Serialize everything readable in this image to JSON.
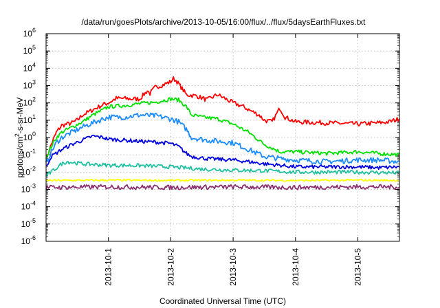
{
  "chart_data": {
    "type": "line",
    "title": "/data/run/goesPlots/archive/2013-10-05/16:00/flux/../flux/5daysEarthFluxes.txt",
    "xlabel": "Coordinated Universal Time (UTC)",
    "ylabel_parts": [
      "protons/cm",
      "2",
      "-s-sr-MeV"
    ],
    "y_scale": "log",
    "ylim_exp": [
      -6,
      6
    ],
    "y_ticks": [
      {
        "exp": -6,
        "label": "-6"
      },
      {
        "exp": -5,
        "label": "-5"
      },
      {
        "exp": -4,
        "label": "-4"
      },
      {
        "exp": -3,
        "label": "-3"
      },
      {
        "exp": -2,
        "label": "-2"
      },
      {
        "exp": -1,
        "label": "-1"
      },
      {
        "exp": 0,
        "label": "0"
      },
      {
        "exp": 1,
        "label": "1"
      },
      {
        "exp": 2,
        "label": "2"
      },
      {
        "exp": 3,
        "label": "3"
      },
      {
        "exp": 4,
        "label": "4"
      },
      {
        "exp": 5,
        "label": "5"
      },
      {
        "exp": 6,
        "label": "6"
      }
    ],
    "y_tick_base": "10",
    "xlim": [
      "2013-09-30T00:00",
      "2013-10-05T16:00"
    ],
    "x_ticks": [
      {
        "t": "2013-10-01T00:00",
        "label": "2013-10-1"
      },
      {
        "t": "2013-10-02T00:00",
        "label": "2013-10-2"
      },
      {
        "t": "2013-10-03T00:00",
        "label": "2013-10-3"
      },
      {
        "t": "2013-10-04T00:00",
        "label": "2013-10-4"
      },
      {
        "t": "2013-10-05T00:00",
        "label": "2013-10-5"
      }
    ],
    "grid": true,
    "legend": "none",
    "series": [
      {
        "color": "#ff0000",
        "noise": 0.06,
        "x": [
          "2013-09-30T00:00",
          "2013-09-30T02:00",
          "2013-09-30T04:00",
          "2013-09-30T06:00",
          "2013-09-30T10:00",
          "2013-09-30T12:00",
          "2013-09-30T14:00",
          "2013-09-30T18:00",
          "2013-09-30T22:00",
          "2013-10-01T00:00",
          "2013-10-01T03:00",
          "2013-10-01T06:00",
          "2013-10-01T09:00",
          "2013-10-01T12:00",
          "2013-10-01T15:00",
          "2013-10-01T16:00",
          "2013-10-01T18:00",
          "2013-10-01T21:00",
          "2013-10-02T00:00",
          "2013-10-02T01:00",
          "2013-10-02T02:00",
          "2013-10-02T04:00",
          "2013-10-02T06:00",
          "2013-10-02T10:00",
          "2013-10-02T14:00",
          "2013-10-02T18:00",
          "2013-10-03T00:00",
          "2013-10-03T04:00",
          "2013-10-03T06:00",
          "2013-10-03T10:00",
          "2013-10-03T12:00",
          "2013-10-03T15:00",
          "2013-10-03T18:00",
          "2013-10-03T20:00",
          "2013-10-04T00:00",
          "2013-10-04T12:00",
          "2013-10-05T00:00",
          "2013-10-05T08:00",
          "2013-10-05T12:00",
          "2013-10-05T16:00"
        ],
        "y": [
          0.05,
          0.4,
          2,
          5,
          7,
          10,
          20,
          40,
          80,
          100,
          180,
          180,
          170,
          170,
          500,
          350,
          800,
          1100,
          1700,
          2500,
          2000,
          800,
          300,
          250,
          150,
          300,
          100,
          60,
          40,
          20,
          10,
          8,
          50,
          15,
          8,
          7,
          6,
          7,
          8,
          12
        ]
      },
      {
        "color": "#00e000",
        "noise": 0.05,
        "x": [
          "2013-09-30T00:00",
          "2013-09-30T02:00",
          "2013-09-30T04:00",
          "2013-09-30T06:00",
          "2013-09-30T10:00",
          "2013-09-30T14:00",
          "2013-09-30T18:00",
          "2013-09-30T22:00",
          "2013-10-01T00:00",
          "2013-10-01T06:00",
          "2013-10-01T12:00",
          "2013-10-01T18:00",
          "2013-10-02T00:00",
          "2013-10-02T03:00",
          "2013-10-02T06:00",
          "2013-10-02T08:00",
          "2013-10-02T12:00",
          "2013-10-02T18:00",
          "2013-10-03T00:00",
          "2013-10-03T06:00",
          "2013-10-03T12:00",
          "2013-10-03T18:00",
          "2013-10-04T00:00",
          "2013-10-04T12:00",
          "2013-10-05T00:00",
          "2013-10-05T08:00",
          "2013-10-05T16:00"
        ],
        "y": [
          0.07,
          0.3,
          1,
          2,
          4,
          8,
          20,
          40,
          60,
          70,
          90,
          110,
          170,
          150,
          60,
          20,
          15,
          12,
          6,
          2,
          0.4,
          0.15,
          0.15,
          0.12,
          0.15,
          0.12,
          0.1
        ]
      },
      {
        "color": "#1a8cff",
        "noise": 0.07,
        "x": [
          "2013-09-30T00:00",
          "2013-09-30T02:00",
          "2013-09-30T04:00",
          "2013-09-30T06:00",
          "2013-09-30T10:00",
          "2013-09-30T14:00",
          "2013-09-30T18:00",
          "2013-09-30T22:00",
          "2013-10-01T00:00",
          "2013-10-01T06:00",
          "2013-10-01T12:00",
          "2013-10-01T18:00",
          "2013-10-02T00:00",
          "2013-10-02T03:00",
          "2013-10-02T06:00",
          "2013-10-02T08:00",
          "2013-10-02T14:00",
          "2013-10-03T00:00",
          "2013-10-03T06:00",
          "2013-10-03T12:00",
          "2013-10-03T18:00",
          "2013-10-04T00:00",
          "2013-10-04T12:00",
          "2013-10-05T00:00",
          "2013-10-05T08:00",
          "2013-10-05T16:00"
        ],
        "y": [
          0.03,
          0.15,
          0.5,
          1,
          2,
          4,
          7,
          12,
          15,
          15,
          20,
          18,
          12,
          8,
          3,
          1,
          0.7,
          0.5,
          0.2,
          0.08,
          0.06,
          0.05,
          0.04,
          0.05,
          0.05,
          0.04
        ]
      },
      {
        "color": "#0000dd",
        "noise": 0.05,
        "x": [
          "2013-09-30T00:00",
          "2013-09-30T02:00",
          "2013-09-30T06:00",
          "2013-09-30T10:00",
          "2013-09-30T14:00",
          "2013-09-30T18:00",
          "2013-09-30T22:00",
          "2013-10-01T00:00",
          "2013-10-01T06:00",
          "2013-10-01T12:00",
          "2013-10-01T18:00",
          "2013-10-02T00:00",
          "2013-10-02T03:00",
          "2013-10-02T06:00",
          "2013-10-02T08:00",
          "2013-10-02T14:00",
          "2013-10-03T00:00",
          "2013-10-03T06:00",
          "2013-10-03T12:00",
          "2013-10-03T18:00",
          "2013-10-04T00:00",
          "2013-10-04T12:00",
          "2013-10-05T00:00",
          "2013-10-05T08:00",
          "2013-10-05T16:00"
        ],
        "y": [
          0.02,
          0.08,
          0.2,
          0.4,
          0.7,
          1.2,
          1,
          0.8,
          0.7,
          0.6,
          0.55,
          0.45,
          0.3,
          0.12,
          0.08,
          0.06,
          0.05,
          0.04,
          0.03,
          0.025,
          0.02,
          0.02,
          0.02,
          0.018,
          0.02
        ]
      },
      {
        "color": "#20c0a0",
        "noise": 0.05,
        "x": [
          "2013-09-30T00:00",
          "2013-09-30T02:00",
          "2013-09-30T06:00",
          "2013-09-30T08:00",
          "2013-09-30T14:00",
          "2013-10-01T00:00",
          "2013-10-01T12:00",
          "2013-10-02T00:00",
          "2013-10-02T12:00",
          "2013-10-03T00:00",
          "2013-10-03T12:00",
          "2013-10-04T00:00",
          "2013-10-04T12:00",
          "2013-10-05T00:00",
          "2013-10-05T16:00"
        ],
        "y": [
          0.006,
          0.01,
          0.03,
          0.04,
          0.03,
          0.025,
          0.024,
          0.02,
          0.015,
          0.013,
          0.012,
          0.01,
          0.01,
          0.01,
          0.009
        ]
      },
      {
        "color": "#ffff00",
        "noise": 0.025,
        "x": [
          "2013-09-30T00:00",
          "2013-10-01T00:00",
          "2013-10-02T00:00",
          "2013-10-03T00:00",
          "2013-10-04T00:00",
          "2013-10-05T00:00",
          "2013-10-05T16:00"
        ],
        "y": [
          0.0033,
          0.0034,
          0.0033,
          0.0034,
          0.0033,
          0.0034,
          0.0033
        ]
      },
      {
        "color": "#8b2f6e",
        "noise": 0.06,
        "x": [
          "2013-09-30T00:00",
          "2013-10-01T00:00",
          "2013-10-02T00:00",
          "2013-10-03T00:00",
          "2013-10-04T00:00",
          "2013-10-05T00:00",
          "2013-10-05T16:00"
        ],
        "y": [
          0.0013,
          0.0014,
          0.0013,
          0.0014,
          0.0013,
          0.0014,
          0.0014
        ]
      }
    ]
  }
}
